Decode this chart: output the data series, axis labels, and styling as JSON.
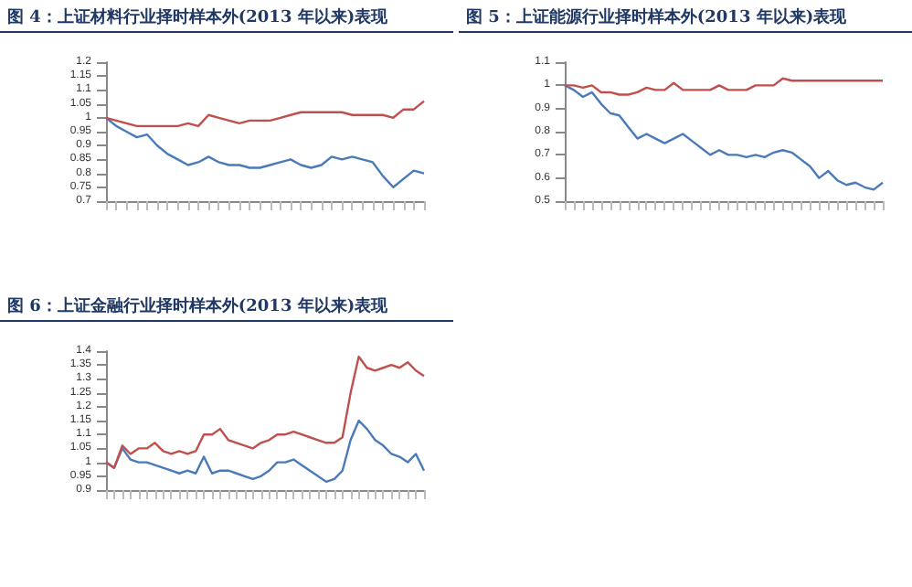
{
  "chart_data": [
    {
      "type": "line",
      "title": "图 4：上证材料行业择时样本外(2013 年以来)表现",
      "categories": [
        null,
        null,
        null,
        null,
        null,
        null,
        null,
        null,
        null,
        null,
        null,
        null,
        null,
        null,
        null,
        null,
        null,
        null,
        null,
        null,
        null,
        null,
        null,
        null,
        null,
        null,
        null,
        null,
        null,
        null,
        null,
        null
      ],
      "series": [
        {
          "color": "#4a7ab8",
          "values": [
            1.0,
            0.97,
            0.95,
            0.93,
            0.94,
            0.9,
            0.87,
            0.85,
            0.83,
            0.84,
            0.86,
            0.84,
            0.83,
            0.83,
            0.82,
            0.82,
            0.83,
            0.84,
            0.85,
            0.83,
            0.82,
            0.83,
            0.86,
            0.85,
            0.86,
            0.85,
            0.84,
            0.79,
            0.75,
            0.78,
            0.81,
            0.8
          ]
        },
        {
          "color": "#c0504d",
          "values": [
            1.0,
            0.99,
            0.98,
            0.97,
            0.97,
            0.97,
            0.97,
            0.97,
            0.98,
            0.97,
            1.01,
            1.0,
            0.99,
            0.98,
            0.99,
            0.99,
            0.99,
            1.0,
            1.01,
            1.02,
            1.02,
            1.02,
            1.02,
            1.02,
            1.01,
            1.01,
            1.01,
            1.01,
            1.0,
            1.03,
            1.03,
            1.06
          ]
        }
      ],
      "ylim": [
        0.7,
        1.2
      ],
      "yticks": [
        0.7,
        0.75,
        0.8,
        0.85,
        0.9,
        0.95,
        1,
        1.05,
        1.1,
        1.15,
        1.2
      ],
      "grid": false
    },
    {
      "type": "line",
      "title": "图 5：上证能源行业择时样本外(2013 年以来)表现",
      "categories": [
        null,
        null,
        null,
        null,
        null,
        null,
        null,
        null,
        null,
        null,
        null,
        null,
        null,
        null,
        null,
        null,
        null,
        null,
        null,
        null,
        null,
        null,
        null,
        null,
        null,
        null,
        null,
        null,
        null,
        null,
        null,
        null,
        null,
        null,
        null,
        null
      ],
      "series": [
        {
          "color": "#4a7ab8",
          "values": [
            1.0,
            0.98,
            0.95,
            0.97,
            0.92,
            0.88,
            0.87,
            0.82,
            0.77,
            0.79,
            0.77,
            0.75,
            0.77,
            0.79,
            0.76,
            0.73,
            0.7,
            0.72,
            0.7,
            0.7,
            0.69,
            0.7,
            0.69,
            0.71,
            0.72,
            0.71,
            0.68,
            0.65,
            0.6,
            0.63,
            0.59,
            0.57,
            0.58,
            0.56,
            0.55,
            0.58
          ]
        },
        {
          "color": "#c0504d",
          "values": [
            1.0,
            1.0,
            0.99,
            1.0,
            0.97,
            0.97,
            0.96,
            0.96,
            0.97,
            0.99,
            0.98,
            0.98,
            1.01,
            0.98,
            0.98,
            0.98,
            0.98,
            1.0,
            0.98,
            0.98,
            0.98,
            1.0,
            1.0,
            1.0,
            1.03,
            1.02,
            1.02,
            1.02,
            1.02,
            1.02,
            1.02,
            1.02,
            1.02,
            1.02,
            1.02,
            1.02
          ]
        }
      ],
      "ylim": [
        0.5,
        1.1
      ],
      "yticks": [
        0.5,
        0.6,
        0.7,
        0.8,
        0.9,
        1,
        1.1
      ],
      "grid": false
    },
    {
      "type": "line",
      "title": "图 6：上证金融行业择时样本外(2013 年以来)表现",
      "categories": [
        null,
        null,
        null,
        null,
        null,
        null,
        null,
        null,
        null,
        null,
        null,
        null,
        null,
        null,
        null,
        null,
        null,
        null,
        null,
        null,
        null,
        null,
        null,
        null,
        null,
        null,
        null,
        null,
        null,
        null,
        null,
        null,
        null,
        null,
        null,
        null,
        null,
        null,
        null,
        null
      ],
      "series": [
        {
          "color": "#4a7ab8",
          "values": [
            1.0,
            0.98,
            1.05,
            1.01,
            1.0,
            1.0,
            0.99,
            0.98,
            0.97,
            0.96,
            0.97,
            0.96,
            1.02,
            0.96,
            0.97,
            0.97,
            0.96,
            0.95,
            0.94,
            0.95,
            0.97,
            1.0,
            1.0,
            1.01,
            0.99,
            0.97,
            0.95,
            0.93,
            0.94,
            0.97,
            1.08,
            1.15,
            1.12,
            1.08,
            1.06,
            1.03,
            1.02,
            1.0,
            1.03,
            0.97
          ]
        },
        {
          "color": "#c0504d",
          "values": [
            1.0,
            0.98,
            1.06,
            1.03,
            1.05,
            1.05,
            1.07,
            1.04,
            1.03,
            1.04,
            1.03,
            1.04,
            1.1,
            1.1,
            1.12,
            1.08,
            1.07,
            1.06,
            1.05,
            1.07,
            1.08,
            1.1,
            1.1,
            1.11,
            1.1,
            1.09,
            1.08,
            1.07,
            1.07,
            1.09,
            1.25,
            1.38,
            1.34,
            1.33,
            1.34,
            1.35,
            1.34,
            1.36,
            1.33,
            1.31
          ]
        }
      ],
      "ylim": [
        0.9,
        1.4
      ],
      "yticks": [
        0.9,
        0.95,
        1,
        1.05,
        1.1,
        1.15,
        1.2,
        1.25,
        1.3,
        1.35,
        1.4
      ],
      "grid": false
    }
  ]
}
